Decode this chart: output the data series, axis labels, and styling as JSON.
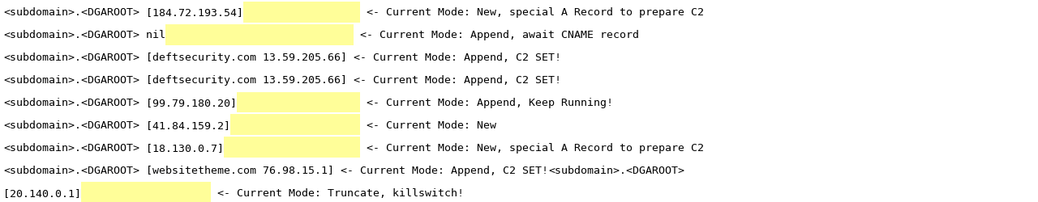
{
  "bg_color": "#ffffff",
  "highlight_color": "#FFFE99",
  "text_color": "#000000",
  "font_size": 9.5,
  "lines": [
    {
      "segments": [
        {
          "text": "<subdomain>.<DGAROOT>",
          "hl": false
        },
        {
          "text": " [184.72.193.54]",
          "hl": false
        },
        {
          "text": "                  ",
          "hl": true
        },
        {
          "text": " <- Current Mode: New, special A Record to prepare C2",
          "hl": false
        }
      ]
    },
    {
      "segments": [
        {
          "text": "<subdomain>.<DGAROOT>",
          "hl": false
        },
        {
          "text": " nil",
          "hl": false
        },
        {
          "text": "                             ",
          "hl": true
        },
        {
          "text": " <- Current Mode: Append, await CNAME record",
          "hl": false
        }
      ]
    },
    {
      "segments": [
        {
          "text": "<subdomain>.<DGAROOT>",
          "hl": false
        },
        {
          "text": " [deftsecurity.com 13.59.205.66] <- Current Mode: Append, C2 SET!",
          "hl": false
        }
      ]
    },
    {
      "segments": [
        {
          "text": "<subdomain>.<DGAROOT>",
          "hl": false
        },
        {
          "text": " [deftsecurity.com 13.59.205.66] <- Current Mode: Append, C2 SET!",
          "hl": false
        }
      ]
    },
    {
      "segments": [
        {
          "text": "<subdomain>.<DGAROOT>",
          "hl": false
        },
        {
          "text": " [99.79.180.20]",
          "hl": false
        },
        {
          "text": "                   ",
          "hl": true
        },
        {
          "text": " <- Current Mode: Append, Keep Running!",
          "hl": false
        }
      ]
    },
    {
      "segments": [
        {
          "text": "<subdomain>.<DGAROOT>",
          "hl": false
        },
        {
          "text": " [41.84.159.2]",
          "hl": false
        },
        {
          "text": "                    ",
          "hl": true
        },
        {
          "text": " <- Current Mode: New",
          "hl": false
        }
      ]
    },
    {
      "segments": [
        {
          "text": "<subdomain>.<DGAROOT>",
          "hl": false
        },
        {
          "text": " [18.130.0.7]",
          "hl": false
        },
        {
          "text": "                     ",
          "hl": true
        },
        {
          "text": " <- Current Mode: New, special A Record to prepare C2",
          "hl": false
        }
      ]
    },
    {
      "segments": [
        {
          "text": "<subdomain>.<DGAROOT>",
          "hl": false
        },
        {
          "text": " [websitetheme.com 76.98.15.1] <- Current Mode: Append, C2 SET!",
          "hl": false
        },
        {
          "text": "<subdomain>.<DGAROOT>",
          "hl": false
        }
      ]
    },
    {
      "segments": [
        {
          "text": "[20.140.0.1]",
          "hl": false
        },
        {
          "text": "                    ",
          "hl": true
        },
        {
          "text": " <- Current Mode: Truncate, killswitch!",
          "hl": false
        }
      ]
    }
  ]
}
